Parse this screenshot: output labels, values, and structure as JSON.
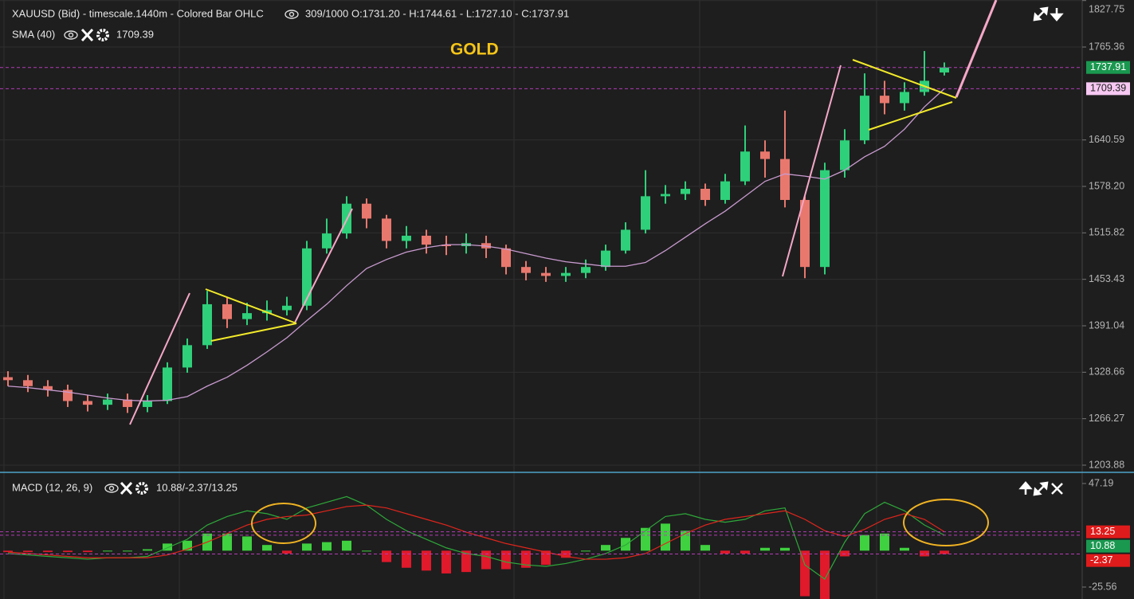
{
  "chart_data": [
    {
      "type": "candlestick",
      "title": "XAUUSD (Bid) - timescale.1440m - Colored Bar OHLC",
      "bar_count": "309/1000",
      "ohlc_label": "O:1731.20 - H:1744.61 - L:1727.10 - C:1737.91",
      "annotation": "GOLD",
      "up_color": "#2fd07a",
      "down_color": "#e8786e",
      "open": [
        1322,
        1318,
        1310,
        1305,
        1290,
        1285,
        1292,
        1282,
        1290,
        1335,
        1365,
        1420,
        1400,
        1408,
        1412,
        1418,
        1495,
        1515,
        1555,
        1535,
        1505,
        1512,
        1500,
        1498,
        1502,
        1495,
        1470,
        1462,
        1458,
        1462,
        1470,
        1492,
        1520,
        1565,
        1568,
        1575,
        1560,
        1585,
        1625,
        1615,
        1560,
        1470,
        1600,
        1640,
        1700,
        1690,
        1705,
        1731.2
      ],
      "high": [
        1330,
        1325,
        1318,
        1312,
        1298,
        1300,
        1300,
        1298,
        1342,
        1374,
        1438,
        1430,
        1422,
        1425,
        1430,
        1505,
        1535,
        1565,
        1562,
        1540,
        1525,
        1520,
        1512,
        1515,
        1512,
        1500,
        1478,
        1470,
        1470,
        1480,
        1500,
        1530,
        1600,
        1580,
        1585,
        1582,
        1595,
        1660,
        1640,
        1680,
        1565,
        1610,
        1655,
        1730,
        1720,
        1718,
        1760,
        1744.61
      ],
      "low": [
        1310,
        1302,
        1296,
        1282,
        1276,
        1278,
        1274,
        1275,
        1286,
        1328,
        1360,
        1388,
        1392,
        1398,
        1405,
        1412,
        1488,
        1508,
        1522,
        1495,
        1495,
        1488,
        1486,
        1488,
        1482,
        1460,
        1452,
        1450,
        1450,
        1455,
        1465,
        1488,
        1515,
        1555,
        1560,
        1552,
        1555,
        1580,
        1590,
        1550,
        1455,
        1460,
        1590,
        1635,
        1675,
        1680,
        1700,
        1727.1
      ],
      "close": [
        1318,
        1310,
        1305,
        1290,
        1285,
        1292,
        1282,
        1290,
        1335,
        1365,
        1420,
        1400,
        1408,
        1412,
        1418,
        1495,
        1515,
        1555,
        1535,
        1505,
        1512,
        1500,
        1498,
        1502,
        1495,
        1470,
        1462,
        1458,
        1462,
        1470,
        1492,
        1520,
        1565,
        1568,
        1575,
        1560,
        1585,
        1625,
        1615,
        1560,
        1470,
        1600,
        1640,
        1700,
        1690,
        1705,
        1720,
        1737.91
      ],
      "sma": {
        "name": "SMA (40)",
        "color": "#c99bd0",
        "values": [
          1310,
          1308,
          1305,
          1302,
          1298,
          1294,
          1291,
          1290,
          1291,
          1296,
          1310,
          1322,
          1338,
          1356,
          1375,
          1398,
          1420,
          1445,
          1468,
          1480,
          1490,
          1496,
          1500,
          1500,
          1498,
          1494,
          1488,
          1482,
          1477,
          1474,
          1471,
          1471,
          1476,
          1492,
          1510,
          1528,
          1545,
          1565,
          1585,
          1595,
          1592,
          1588,
          1600,
          1618,
          1632,
          1655,
          1685,
          1709.39
        ]
      },
      "ylim": [
        1195.3,
        1828.5
      ],
      "yticks": [
        1827.75,
        1765.36,
        1640.59,
        {
          "value": 1578.2,
          "label": "1578.20"
        },
        1515.82,
        1453.43,
        1391.04,
        1328.66,
        1266.27,
        1203.88
      ],
      "grid": true
    },
    {
      "type": "macd",
      "title": "MACD (12, 26, 9)",
      "legend_values": "10.88/-2.37/13.25",
      "macd": {
        "color": "#2ea83a",
        "values": [
          -2,
          -3,
          -4,
          -5,
          -6,
          -5,
          -5,
          -4,
          2,
          8,
          18,
          24,
          28,
          26,
          22,
          30,
          34,
          38,
          32,
          22,
          14,
          8,
          2,
          -2,
          -4,
          -8,
          -10,
          -11,
          -9,
          -6,
          -2,
          4,
          14,
          24,
          26,
          22,
          20,
          22,
          28,
          30,
          -10,
          -20,
          6,
          26,
          34,
          28,
          18,
          10.88
        ]
      },
      "signal": {
        "color": "#e0251c",
        "values": [
          -1,
          -2,
          -3,
          -4,
          -5,
          -5,
          -5,
          -5,
          -3,
          1,
          6,
          12,
          18,
          22,
          24,
          25,
          28,
          31,
          32,
          30,
          26,
          22,
          18,
          13,
          9,
          5,
          2,
          -1,
          -4,
          -6,
          -6,
          -5,
          -2,
          5,
          12,
          18,
          22,
          24,
          26,
          28,
          22,
          14,
          10,
          15,
          22,
          26,
          22,
          13.25
        ]
      },
      "histogram": {
        "up_color": "#3fd13f",
        "down_color": "#e0192b",
        "values": [
          -1,
          -1,
          -1,
          -1,
          -1,
          0,
          0,
          1,
          5,
          7,
          12,
          12,
          10,
          4,
          -2,
          5,
          6,
          7,
          0,
          -8,
          -12,
          -14,
          -16,
          -15,
          -13,
          -13,
          -12,
          -10,
          -5,
          0,
          4,
          9,
          16,
          19,
          14,
          4,
          -2,
          -2,
          2,
          2,
          -32,
          -34,
          -4,
          11,
          12,
          2,
          -4,
          -2.37
        ]
      },
      "ylim": [
        -33.95,
        53.9
      ],
      "yticks": [
        47.19,
        -25.56
      ],
      "grid": false
    }
  ]
}
